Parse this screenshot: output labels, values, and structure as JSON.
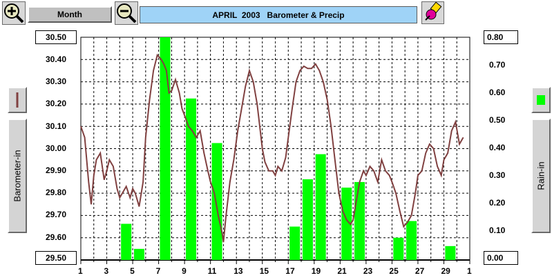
{
  "toolbar": {
    "range_label": "Month",
    "title": "APRIL  2003   Barometer & Precip"
  },
  "left_axis": {
    "label": "Barometer-in",
    "min_label": "29.50",
    "max_label": "30.50",
    "ticks": [
      "30.40",
      "30.30",
      "30.20",
      "30.10",
      "30.00",
      "29.90",
      "29.80",
      "29.70",
      "29.60"
    ]
  },
  "right_axis": {
    "label": "Rain-in",
    "min_label": "0.00",
    "max_label": "0.80",
    "ticks": [
      "0.70",
      "0.60",
      "0.50",
      "0.40",
      "0.30",
      "0.20",
      "0.10"
    ]
  },
  "x_axis": {
    "ticks": [
      "1",
      "3",
      "5",
      "7",
      "9",
      "11",
      "13",
      "15",
      "17",
      "19",
      "21",
      "23",
      "25",
      "27",
      "29",
      "1"
    ]
  },
  "colors": {
    "barometer": "#804040",
    "rain": "#00ff00",
    "title_bg": "#9fd3f7",
    "grid": "#000000"
  },
  "icons": {
    "zoom_in": "zoom-in-icon",
    "zoom_out": "zoom-out-icon",
    "paint": "paint-icon",
    "barometer_legend": "barometer-legend-icon",
    "rain_legend": "rain-legend-icon"
  },
  "chart_data": {
    "type": "line",
    "title": "APRIL  2003   Barometer & Precip",
    "xlabel": "",
    "ylabel": "Barometer-in",
    "y2label": "Rain-in",
    "xlim": [
      1,
      31
    ],
    "ylim": [
      29.5,
      30.5
    ],
    "y2lim": [
      0,
      0.8
    ],
    "grid": true,
    "series": [
      {
        "name": "Barometer-in",
        "type": "line",
        "axis": "left",
        "x": [
          1.0,
          1.3,
          1.6,
          1.8,
          2.0,
          2.2,
          2.5,
          2.8,
          3.0,
          3.2,
          3.5,
          3.8,
          4.0,
          4.2,
          4.5,
          4.8,
          5.0,
          5.2,
          5.5,
          5.8,
          6.0,
          6.3,
          6.6,
          6.9,
          7.2,
          7.4,
          7.6,
          7.8,
          8.0,
          8.3,
          8.6,
          8.8,
          9.0,
          9.3,
          9.6,
          9.9,
          10.2,
          10.5,
          10.8,
          11.0,
          11.3,
          11.6,
          11.9,
          12.0,
          12.2,
          12.5,
          12.8,
          13.1,
          13.4,
          13.7,
          14.0,
          14.3,
          14.6,
          14.8,
          15.0,
          15.2,
          15.5,
          15.8,
          16.0,
          16.2,
          16.5,
          16.8,
          17.0,
          17.3,
          17.6,
          17.9,
          18.2,
          18.5,
          18.8,
          19.1,
          19.4,
          19.7,
          20.0,
          20.3,
          20.6,
          20.9,
          21.2,
          21.5,
          21.8,
          22.0,
          22.2,
          22.5,
          22.8,
          23.0,
          23.3,
          23.6,
          23.9,
          24.2,
          24.5,
          24.8,
          25.0,
          25.3,
          25.6,
          25.9,
          26.2,
          26.5,
          26.8,
          27.0,
          27.3,
          27.6,
          27.9,
          28.2,
          28.5,
          28.8,
          29.0,
          29.3,
          29.6,
          29.9,
          30.2,
          30.5
        ],
        "values": [
          30.1,
          30.05,
          29.85,
          29.75,
          29.88,
          29.95,
          29.98,
          29.86,
          29.9,
          29.95,
          29.92,
          29.82,
          29.78,
          29.8,
          29.83,
          29.78,
          29.82,
          29.8,
          29.74,
          29.85,
          30.05,
          30.22,
          30.35,
          30.42,
          30.4,
          30.38,
          30.35,
          30.25,
          30.26,
          30.31,
          30.25,
          30.18,
          30.15,
          30.1,
          30.08,
          30.05,
          30.08,
          29.98,
          29.9,
          29.85,
          29.8,
          29.7,
          29.62,
          29.58,
          29.7,
          29.85,
          29.95,
          30.08,
          30.18,
          30.28,
          30.35,
          30.3,
          30.2,
          30.1,
          30.0,
          29.94,
          29.9,
          29.9,
          29.88,
          29.92,
          29.9,
          29.96,
          30.05,
          30.18,
          30.3,
          30.35,
          30.37,
          30.36,
          30.36,
          30.38,
          30.35,
          30.3,
          30.22,
          30.1,
          29.95,
          29.8,
          29.72,
          29.68,
          29.66,
          29.68,
          29.75,
          29.85,
          29.9,
          29.88,
          29.92,
          29.9,
          29.85,
          29.95,
          29.9,
          29.88,
          29.85,
          29.8,
          29.72,
          29.65,
          29.67,
          29.7,
          29.8,
          29.88,
          29.9,
          29.98,
          30.02,
          30.0,
          29.92,
          29.88,
          29.95,
          29.98,
          30.08,
          30.12,
          30.02,
          30.05
        ]
      },
      {
        "name": "Rain-in",
        "type": "bar",
        "axis": "right",
        "x": [
          4.5,
          5.5,
          7.5,
          9.5,
          11.5,
          17.5,
          18.5,
          19.5,
          21.5,
          22.5,
          25.5,
          26.5,
          29.5
        ],
        "values": [
          0.13,
          0.04,
          0.8,
          0.58,
          0.42,
          0.12,
          0.29,
          0.38,
          0.26,
          0.28,
          0.08,
          0.14,
          0.05
        ]
      }
    ]
  }
}
